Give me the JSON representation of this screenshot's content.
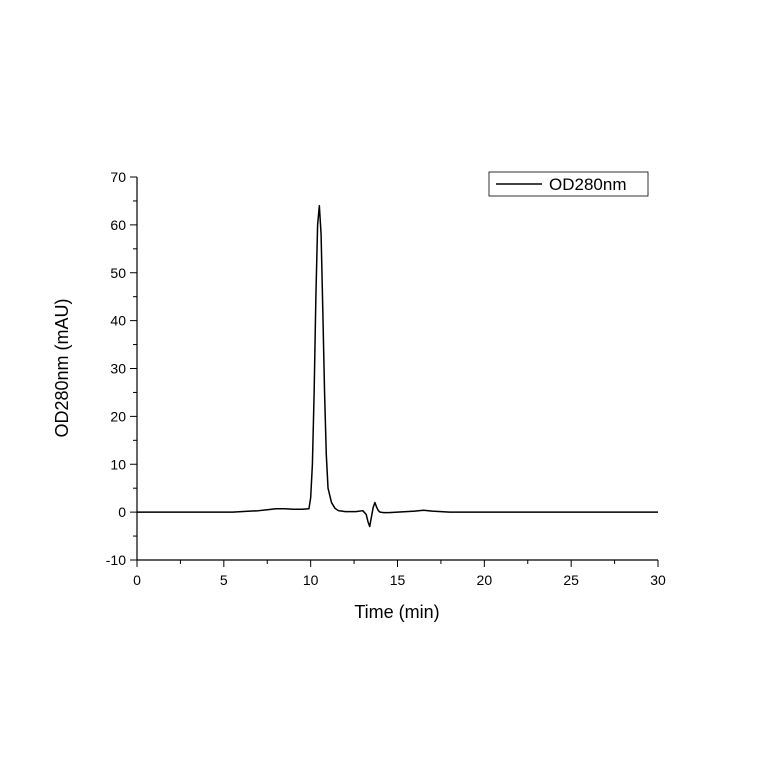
{
  "chart_data": {
    "type": "line",
    "title": "",
    "xlabel": "Time (min)",
    "ylabel": "OD280nm (mAU)",
    "xlim": [
      0,
      30
    ],
    "ylim": [
      -10,
      70
    ],
    "x_ticks": [
      0,
      5,
      10,
      15,
      20,
      25,
      30
    ],
    "y_ticks": [
      -10,
      0,
      10,
      20,
      30,
      40,
      50,
      60,
      70
    ],
    "x_tick_labels": [
      "0",
      "5",
      "10",
      "15",
      "20",
      "25",
      "30"
    ],
    "y_tick_labels": [
      "-10",
      "0",
      "10",
      "20",
      "30",
      "40",
      "50",
      "60",
      "70"
    ],
    "grid": false,
    "legend_position": "top-right",
    "series": [
      {
        "name": "OD280nm",
        "color": "#000000",
        "x": [
          0,
          2,
          4,
          5.5,
          6,
          6.5,
          7,
          7.5,
          8,
          8.5,
          9,
          9.5,
          9.9,
          10.0,
          10.1,
          10.2,
          10.3,
          10.4,
          10.5,
          10.6,
          10.7,
          10.8,
          10.9,
          11.0,
          11.2,
          11.4,
          11.6,
          11.8,
          12.0,
          12.3,
          12.6,
          13.0,
          13.2,
          13.3,
          13.4,
          13.5,
          13.6,
          13.7,
          13.8,
          13.9,
          14.0,
          14.2,
          14.5,
          15.0,
          15.5,
          16.0,
          16.5,
          17.0,
          17.5,
          18,
          20,
          22,
          25,
          28,
          30
        ],
        "y": [
          0,
          0,
          0,
          0,
          0.1,
          0.2,
          0.3,
          0.5,
          0.7,
          0.7,
          0.6,
          0.6,
          0.7,
          3,
          10,
          25,
          45,
          60,
          64,
          58,
          42,
          25,
          12,
          5,
          2,
          0.8,
          0.3,
          0.2,
          0.1,
          0.1,
          0.1,
          0.3,
          -0.5,
          -2,
          -3,
          -1,
          1,
          2,
          1,
          0.3,
          0,
          -0.1,
          -0.1,
          0,
          0.1,
          0.2,
          0.4,
          0.2,
          0.1,
          0,
          0,
          0,
          0,
          0,
          0
        ]
      }
    ]
  }
}
